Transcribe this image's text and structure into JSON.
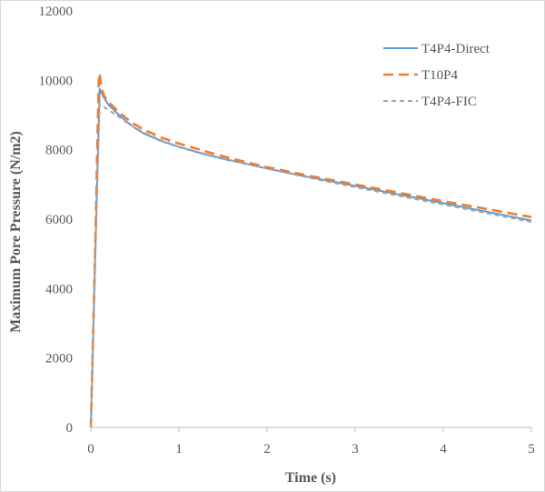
{
  "chart_data": {
    "type": "line",
    "title": "",
    "xlabel": "Time (s)",
    "ylabel": "Maximum Pore Pressure (N/m2)",
    "xlim": [
      0,
      5
    ],
    "ylim": [
      0,
      12000
    ],
    "x_ticks": [
      "0",
      "1",
      "2",
      "3",
      "4",
      "5"
    ],
    "y_ticks": [
      "0",
      "2000",
      "4000",
      "6000",
      "8000",
      "10000",
      "12000"
    ],
    "grid": false,
    "legend_position": "top-right",
    "series": [
      {
        "name": "T4P4-Direct",
        "color": "#5b9bd5",
        "style": "solid",
        "x": [
          0,
          0.05,
          0.1,
          0.12,
          0.15,
          0.2,
          0.3,
          0.4,
          0.5,
          0.6,
          0.8,
          1.0,
          1.25,
          1.5,
          1.75,
          2.0,
          2.5,
          3.0,
          3.5,
          4.0,
          4.5,
          5.0
        ],
        "y": [
          0,
          5000,
          9750,
          9650,
          9500,
          9300,
          9050,
          8820,
          8630,
          8470,
          8250,
          8080,
          7900,
          7740,
          7600,
          7460,
          7200,
          6960,
          6710,
          6460,
          6210,
          5960
        ]
      },
      {
        "name": "T10P4",
        "color": "#ed7d31",
        "style": "dash",
        "x": [
          0,
          0.05,
          0.09,
          0.1,
          0.12,
          0.15,
          0.2,
          0.3,
          0.4,
          0.5,
          0.6,
          0.8,
          1.0,
          1.25,
          1.5,
          1.75,
          2.0,
          2.5,
          3.0,
          3.5,
          4.0,
          4.5,
          5.0
        ],
        "y": [
          0,
          5100,
          10000,
          10200,
          9800,
          9550,
          9380,
          9130,
          8910,
          8730,
          8580,
          8350,
          8180,
          7990,
          7810,
          7650,
          7500,
          7240,
          7000,
          6760,
          6520,
          6290,
          6060
        ]
      },
      {
        "name": "T4P4-FIC",
        "color": "#a5a5a5",
        "style": "dot",
        "x": [
          0,
          0.05,
          0.1,
          0.15,
          0.2,
          0.3,
          0.4,
          0.5,
          0.6,
          0.8,
          1.0,
          1.25,
          1.5,
          1.75,
          2.0,
          2.5,
          3.0,
          3.5,
          4.0,
          4.5,
          5.0
        ],
        "y": [
          0,
          4800,
          9300,
          9230,
          9150,
          8980,
          8800,
          8640,
          8500,
          8270,
          8090,
          7910,
          7750,
          7600,
          7460,
          7180,
          6920,
          6670,
          6420,
          6170,
          5920
        ]
      }
    ]
  }
}
